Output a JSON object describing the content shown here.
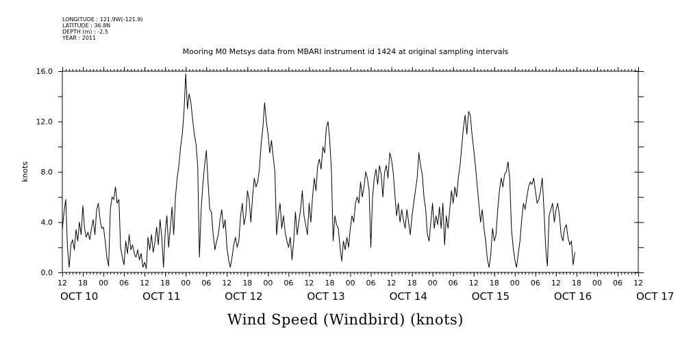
{
  "header": {
    "meta_lines": [
      "LONGITUDE : 121.9W(-121.9)",
      "LATITUDE : 36.8N",
      "DEPTH (m) : -2.5",
      "YEAR : 2011"
    ],
    "title": "Mooring M0 Metsys data from MBARI instrument id 1424 at original sampling intervals"
  },
  "footer": {
    "caption": "Wind Speed (Windbird) (knots)"
  },
  "chart_data": {
    "type": "line",
    "title": "Mooring M0 Metsys data from MBARI instrument id 1424 at original sampling intervals",
    "xlabel": "",
    "ylabel": "knots",
    "xlim_hours": [
      0,
      168
    ],
    "x_axis_start": "2011-10-10 12:00",
    "ylim": [
      0.0,
      16.0
    ],
    "grid": false,
    "y_ticks": [
      "0.0",
      "4.0",
      "8.0",
      "12.0",
      "16.0"
    ],
    "x_tick_hour_labels": [
      "12",
      "18",
      "00",
      "06",
      "12",
      "18",
      "00",
      "06",
      "12",
      "18",
      "00",
      "06",
      "12",
      "18",
      "00",
      "06",
      "12",
      "18",
      "00",
      "06",
      "12",
      "18",
      "00",
      "06",
      "12",
      "18",
      "00",
      "06",
      "12"
    ],
    "date_labels": [
      {
        "label": "OCT 10",
        "at": "2011-10-10 12:00"
      },
      {
        "label": "OCT 11",
        "at": "2011-10-11 12:00"
      },
      {
        "label": "OCT 12",
        "at": "2011-10-12 12:00"
      },
      {
        "label": "OCT 13",
        "at": "2011-10-13 12:00"
      },
      {
        "label": "OCT 14",
        "at": "2011-10-14 12:00"
      },
      {
        "label": "OCT 15",
        "at": "2011-10-15 12:00"
      },
      {
        "label": "OCT 16",
        "at": "2011-10-16 12:00"
      },
      {
        "label": "OCT 17",
        "at": "2011-10-17 12:00"
      }
    ],
    "series": [
      {
        "color": "#000000",
        "points": [
          [
            0,
            3.4
          ],
          [
            0.5,
            4.8
          ],
          [
            1,
            5.8
          ],
          [
            1.5,
            2.0
          ],
          [
            2,
            0.4
          ],
          [
            2.5,
            2.2
          ],
          [
            3,
            2.6
          ],
          [
            3.5,
            1.8
          ],
          [
            4,
            3.4
          ],
          [
            4.5,
            2.5
          ],
          [
            5,
            4.0
          ],
          [
            5.5,
            3.0
          ],
          [
            6,
            5.3
          ],
          [
            6.5,
            3.5
          ],
          [
            7,
            2.8
          ],
          [
            7.5,
            3.2
          ],
          [
            8,
            2.6
          ],
          [
            8.5,
            3.5
          ],
          [
            9,
            4.2
          ],
          [
            9.5,
            3.0
          ],
          [
            10,
            5.0
          ],
          [
            10.5,
            5.5
          ],
          [
            11,
            4.2
          ],
          [
            11.5,
            3.5
          ],
          [
            12,
            3.6
          ],
          [
            12.5,
            2.5
          ],
          [
            13,
            1.2
          ],
          [
            13.5,
            0.5
          ],
          [
            14,
            5.0
          ],
          [
            14.5,
            6.0
          ],
          [
            15,
            5.8
          ],
          [
            15.5,
            6.8
          ],
          [
            16,
            5.5
          ],
          [
            16.5,
            5.8
          ],
          [
            17,
            2.0
          ],
          [
            17.5,
            1.2
          ],
          [
            18,
            0.6
          ],
          [
            18.5,
            2.5
          ],
          [
            19,
            1.5
          ],
          [
            19.5,
            3.0
          ],
          [
            20,
            1.8
          ],
          [
            20.5,
            2.2
          ],
          [
            21,
            1.5
          ],
          [
            21.5,
            1.2
          ],
          [
            22,
            1.8
          ],
          [
            22.5,
            1.0
          ],
          [
            23,
            1.5
          ],
          [
            23.5,
            0.4
          ],
          [
            24,
            0.8
          ],
          [
            24.5,
            0.3
          ],
          [
            25,
            2.8
          ],
          [
            25.5,
            1.8
          ],
          [
            26,
            3.0
          ],
          [
            26.5,
            1.6
          ],
          [
            27,
            2.4
          ],
          [
            27.5,
            3.6
          ],
          [
            28,
            2.2
          ],
          [
            28.5,
            4.2
          ],
          [
            29,
            2.8
          ],
          [
            29.5,
            0.4
          ],
          [
            30,
            3.2
          ],
          [
            30.5,
            4.5
          ],
          [
            31,
            2.0
          ],
          [
            31.5,
            3.5
          ],
          [
            32,
            5.2
          ],
          [
            32.5,
            3.0
          ],
          [
            33,
            6.0
          ],
          [
            33.5,
            7.5
          ],
          [
            34,
            8.5
          ],
          [
            34.5,
            10.0
          ],
          [
            35,
            11.0
          ],
          [
            35.5,
            12.8
          ],
          [
            36,
            15.8
          ],
          [
            36.5,
            13.0
          ],
          [
            37,
            14.2
          ],
          [
            37.5,
            13.5
          ],
          [
            38,
            12.2
          ],
          [
            38.5,
            11.0
          ],
          [
            39,
            10.2
          ],
          [
            39.5,
            8.5
          ],
          [
            40,
            1.2
          ],
          [
            40.5,
            5.0
          ],
          [
            41,
            7.0
          ],
          [
            41.5,
            8.5
          ],
          [
            42,
            9.7
          ],
          [
            42.5,
            7.2
          ],
          [
            43,
            5.0
          ],
          [
            43.5,
            4.8
          ],
          [
            44,
            3.0
          ],
          [
            44.5,
            1.8
          ],
          [
            45,
            2.5
          ],
          [
            45.5,
            3.0
          ],
          [
            46,
            4.2
          ],
          [
            46.5,
            5.0
          ],
          [
            47,
            3.5
          ],
          [
            47.5,
            4.2
          ],
          [
            48,
            2.0
          ],
          [
            48.5,
            1.0
          ],
          [
            49,
            0.4
          ],
          [
            49.5,
            1.2
          ],
          [
            50,
            2.2
          ],
          [
            50.5,
            2.8
          ],
          [
            51,
            2.0
          ],
          [
            51.5,
            2.5
          ],
          [
            52,
            4.5
          ],
          [
            52.5,
            5.5
          ],
          [
            53,
            3.8
          ],
          [
            53.5,
            4.5
          ],
          [
            54,
            6.5
          ],
          [
            54.5,
            5.8
          ],
          [
            55,
            4.0
          ],
          [
            55.5,
            6.0
          ],
          [
            56,
            7.5
          ],
          [
            56.5,
            6.8
          ],
          [
            57,
            7.2
          ],
          [
            57.5,
            8.2
          ],
          [
            58,
            10.2
          ],
          [
            58.5,
            11.5
          ],
          [
            59,
            13.5
          ],
          [
            59.5,
            12.0
          ],
          [
            60,
            11.0
          ],
          [
            60.5,
            9.5
          ],
          [
            61,
            10.5
          ],
          [
            61.5,
            9.2
          ],
          [
            62,
            8.0
          ],
          [
            62.5,
            3.0
          ],
          [
            63,
            4.5
          ],
          [
            63.5,
            5.5
          ],
          [
            64,
            3.5
          ],
          [
            64.5,
            4.5
          ],
          [
            65,
            3.2
          ],
          [
            65.5,
            2.5
          ],
          [
            66,
            2.0
          ],
          [
            66.5,
            2.8
          ],
          [
            67,
            1.0
          ],
          [
            67.5,
            2.5
          ],
          [
            68,
            4.8
          ],
          [
            68.5,
            3.0
          ],
          [
            69,
            4.0
          ],
          [
            69.5,
            5.0
          ],
          [
            70,
            6.5
          ],
          [
            70.5,
            4.5
          ],
          [
            71,
            3.8
          ],
          [
            71.5,
            3.0
          ],
          [
            72,
            5.5
          ],
          [
            72.5,
            4.0
          ],
          [
            73,
            6.0
          ],
          [
            73.5,
            7.5
          ],
          [
            74,
            6.5
          ],
          [
            74.5,
            8.5
          ],
          [
            75,
            9.0
          ],
          [
            75.5,
            8.2
          ],
          [
            76,
            10.0
          ],
          [
            76.5,
            9.5
          ],
          [
            77,
            11.5
          ],
          [
            77.5,
            12.0
          ],
          [
            78,
            10.5
          ],
          [
            78.5,
            8.0
          ],
          [
            79,
            2.5
          ],
          [
            79.5,
            4.5
          ],
          [
            80,
            3.8
          ],
          [
            80.5,
            3.5
          ],
          [
            81,
            2.0
          ],
          [
            81.5,
            0.9
          ],
          [
            82,
            2.5
          ],
          [
            82.5,
            1.8
          ],
          [
            83,
            2.8
          ],
          [
            83.5,
            2.0
          ],
          [
            84,
            3.5
          ],
          [
            84.5,
            4.5
          ],
          [
            85,
            4.0
          ],
          [
            85.5,
            5.5
          ],
          [
            86,
            6.0
          ],
          [
            86.5,
            5.5
          ],
          [
            87,
            7.2
          ],
          [
            87.5,
            6.0
          ],
          [
            88,
            6.8
          ],
          [
            88.5,
            8.0
          ],
          [
            89,
            7.5
          ],
          [
            89.5,
            6.5
          ],
          [
            90,
            2.0
          ],
          [
            90.5,
            6.0
          ],
          [
            91,
            7.5
          ],
          [
            91.5,
            8.2
          ],
          [
            92,
            7.0
          ],
          [
            92.5,
            8.5
          ],
          [
            93,
            7.8
          ],
          [
            93.5,
            6.0
          ],
          [
            94,
            8.0
          ],
          [
            94.5,
            8.5
          ],
          [
            95,
            7.5
          ],
          [
            95.5,
            9.5
          ],
          [
            96,
            9.0
          ],
          [
            96.5,
            8.0
          ],
          [
            97,
            6.2
          ],
          [
            97.5,
            4.5
          ],
          [
            98,
            5.5
          ],
          [
            98.5,
            4.0
          ],
          [
            99,
            5.0
          ],
          [
            99.5,
            4.2
          ],
          [
            100,
            3.5
          ],
          [
            100.5,
            5.0
          ],
          [
            101,
            4.0
          ],
          [
            101.5,
            3.0
          ],
          [
            102,
            4.5
          ],
          [
            102.5,
            5.5
          ],
          [
            103,
            6.5
          ],
          [
            103.5,
            7.5
          ],
          [
            104,
            9.5
          ],
          [
            104.5,
            8.5
          ],
          [
            105,
            7.8
          ],
          [
            105.5,
            6.0
          ],
          [
            106,
            5.0
          ],
          [
            106.5,
            3.0
          ],
          [
            107,
            2.5
          ],
          [
            107.5,
            4.0
          ],
          [
            108,
            5.5
          ],
          [
            108.5,
            3.5
          ],
          [
            109,
            4.5
          ],
          [
            109.5,
            3.8
          ],
          [
            110,
            5.2
          ],
          [
            110.5,
            3.5
          ],
          [
            111,
            5.5
          ],
          [
            111.5,
            2.2
          ],
          [
            112,
            4.5
          ],
          [
            112.5,
            3.5
          ],
          [
            113,
            5.0
          ],
          [
            113.5,
            6.5
          ],
          [
            114,
            5.5
          ],
          [
            114.5,
            6.8
          ],
          [
            115,
            6.0
          ],
          [
            115.5,
            7.5
          ],
          [
            116,
            8.5
          ],
          [
            116.5,
            10.0
          ],
          [
            117,
            11.5
          ],
          [
            117.5,
            12.5
          ],
          [
            118,
            11.0
          ],
          [
            118.5,
            12.8
          ],
          [
            119,
            12.5
          ],
          [
            119.5,
            11.0
          ],
          [
            120,
            9.8
          ],
          [
            120.5,
            8.5
          ],
          [
            121,
            7.0
          ],
          [
            121.5,
            5.5
          ],
          [
            122,
            4.0
          ],
          [
            122.5,
            5.0
          ],
          [
            123,
            3.5
          ],
          [
            123.5,
            2.5
          ],
          [
            124,
            1.0
          ],
          [
            124.5,
            0.4
          ],
          [
            125,
            1.5
          ],
          [
            125.5,
            3.5
          ],
          [
            126,
            2.5
          ],
          [
            126.5,
            3.0
          ],
          [
            127,
            5.0
          ],
          [
            127.5,
            6.5
          ],
          [
            128,
            7.5
          ],
          [
            128.5,
            6.8
          ],
          [
            129,
            7.8
          ],
          [
            129.5,
            8.0
          ],
          [
            130,
            8.8
          ],
          [
            130.5,
            7.5
          ],
          [
            131,
            3.5
          ],
          [
            131.5,
            2.0
          ],
          [
            132,
            1.0
          ],
          [
            132.5,
            0.4
          ],
          [
            133,
            1.5
          ],
          [
            133.5,
            2.5
          ],
          [
            134,
            4.2
          ],
          [
            134.5,
            5.5
          ],
          [
            135,
            5.0
          ],
          [
            135.5,
            6.0
          ],
          [
            136,
            6.8
          ],
          [
            136.5,
            7.2
          ],
          [
            137,
            7.0
          ],
          [
            137.5,
            7.5
          ],
          [
            138,
            6.5
          ],
          [
            138.5,
            5.5
          ],
          [
            139,
            5.8
          ],
          [
            139.5,
            6.5
          ],
          [
            140,
            7.5
          ],
          [
            140.5,
            5.0
          ],
          [
            141,
            2.0
          ],
          [
            141.5,
            0.5
          ],
          [
            142,
            4.5
          ],
          [
            142.5,
            5.0
          ],
          [
            143,
            5.5
          ],
          [
            143.5,
            4.0
          ],
          [
            144,
            5.0
          ],
          [
            144.5,
            5.5
          ],
          [
            145,
            4.5
          ],
          [
            145.5,
            3.0
          ],
          [
            146,
            2.5
          ],
          [
            146.5,
            3.5
          ],
          [
            147,
            3.8
          ],
          [
            147.5,
            2.8
          ],
          [
            148,
            2.2
          ],
          [
            148.5,
            2.5
          ],
          [
            149,
            0.6
          ],
          [
            149.5,
            1.6
          ]
        ]
      }
    ]
  }
}
